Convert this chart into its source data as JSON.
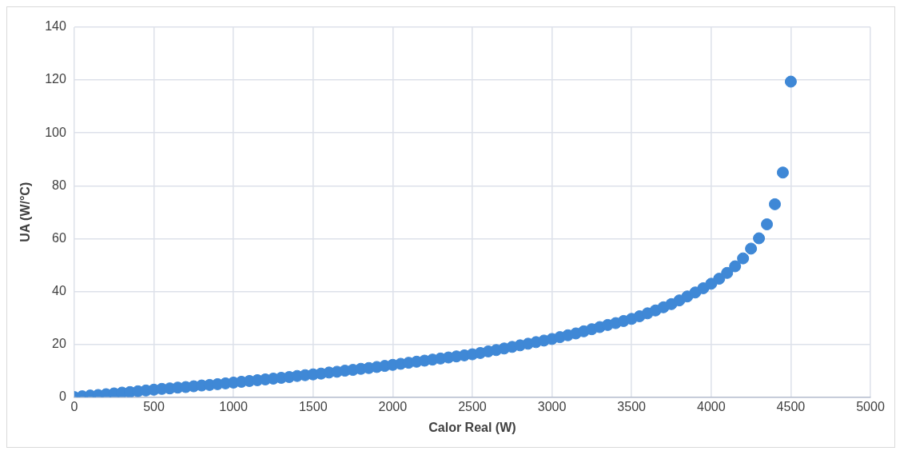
{
  "chart_data": {
    "type": "scatter",
    "xlabel": "Calor Real (W)",
    "ylabel": "UA (W/°C)",
    "x": [
      0,
      50,
      100,
      150,
      200,
      250,
      300,
      350,
      400,
      450,
      500,
      550,
      600,
      650,
      700,
      750,
      800,
      850,
      900,
      950,
      1000,
      1050,
      1100,
      1150,
      1200,
      1250,
      1300,
      1350,
      1400,
      1450,
      1500,
      1550,
      1600,
      1650,
      1700,
      1750,
      1800,
      1850,
      1900,
      1950,
      2000,
      2050,
      2100,
      2150,
      2200,
      2250,
      2300,
      2350,
      2400,
      2450,
      2500,
      2550,
      2600,
      2650,
      2700,
      2750,
      2800,
      2850,
      2900,
      2950,
      3000,
      3050,
      3100,
      3150,
      3200,
      3250,
      3300,
      3350,
      3400,
      3450,
      3500,
      3550,
      3600,
      3650,
      3700,
      3750,
      3800,
      3850,
      3900,
      3950,
      4000,
      4050,
      4100,
      4150,
      4200,
      4250,
      4300,
      4350,
      4400,
      4450,
      4500
    ],
    "series": [
      {
        "color": "#3f88d6",
        "values": [
          0,
          0.3,
          0.6,
          0.8,
          1.1,
          1.4,
          1.7,
          1.9,
          2.2,
          2.5,
          2.8,
          3.1,
          3.3,
          3.6,
          3.8,
          4.1,
          4.4,
          4.6,
          4.9,
          5.2,
          5.5,
          5.8,
          6.1,
          6.4,
          6.7,
          7.0,
          7.3,
          7.6,
          8.0,
          8.3,
          8.6,
          8.9,
          9.3,
          9.6,
          10.0,
          10.3,
          10.7,
          11.0,
          11.4,
          11.8,
          12.2,
          12.6,
          13.0,
          13.4,
          13.8,
          14.2,
          14.6,
          15.0,
          15.4,
          15.8,
          16.2,
          16.7,
          17.3,
          17.8,
          18.4,
          19.0,
          19.6,
          20.2,
          20.8,
          21.4,
          22.0,
          22.7,
          23.4,
          24.1,
          24.9,
          25.7,
          26.5,
          27.3,
          28.0,
          28.8,
          29.6,
          30.6,
          31.7,
          32.8,
          34.0,
          35.2,
          36.6,
          38.1,
          39.6,
          41.2,
          42.9,
          44.8,
          47.0,
          49.5,
          52.5,
          56.2,
          60.1,
          65.4,
          73.0,
          85.0,
          119.4
        ]
      }
    ],
    "xlim": [
      0,
      5000
    ],
    "xticks": [
      0,
      500,
      1000,
      1500,
      2000,
      2500,
      3000,
      3500,
      4000,
      4500,
      5000
    ],
    "ylim": [
      0,
      140
    ],
    "yticks": [
      0,
      20,
      40,
      60,
      80,
      100,
      120,
      140
    ],
    "grid": true,
    "legend": false,
    "marker": "circle"
  }
}
